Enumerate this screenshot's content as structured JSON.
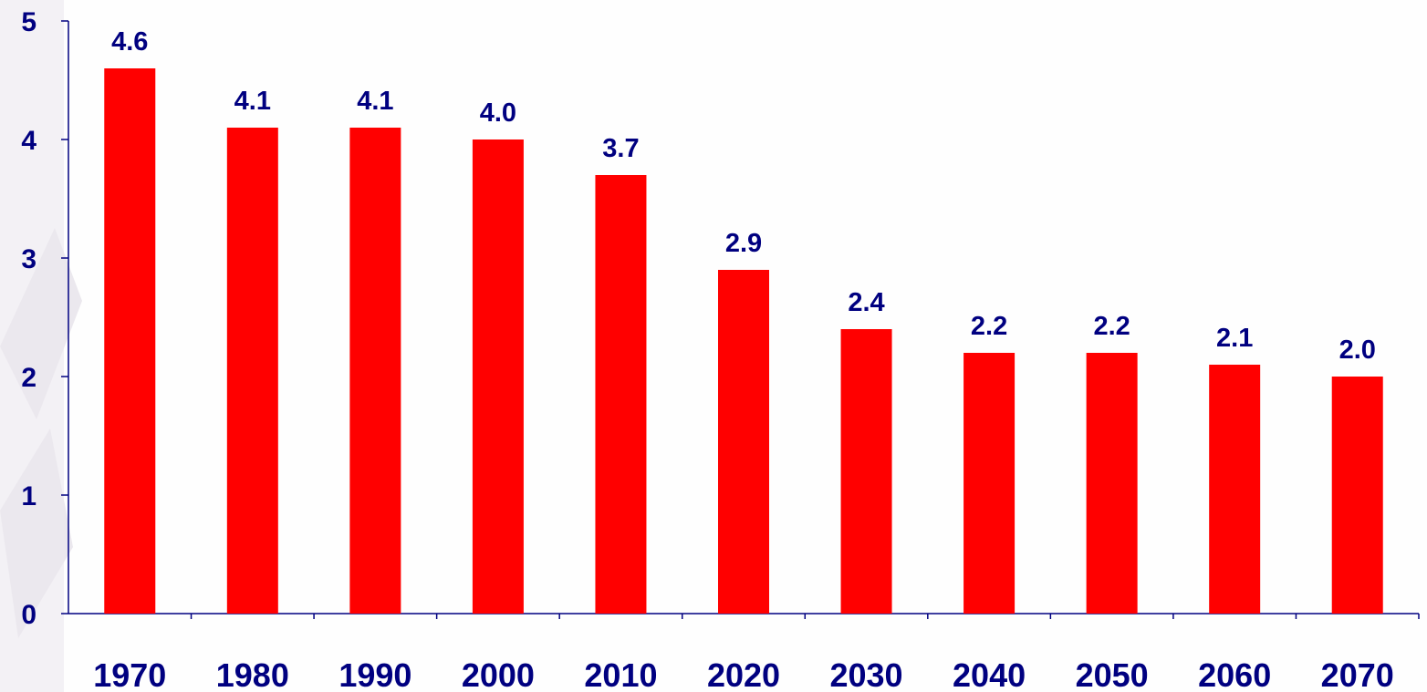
{
  "chart_data": {
    "type": "bar",
    "categories": [
      "1970",
      "1980",
      "1990",
      "2000",
      "2010",
      "2020",
      "2030",
      "2040",
      "2050",
      "2060",
      "2070"
    ],
    "values": [
      4.6,
      4.1,
      4.1,
      4.0,
      3.7,
      2.9,
      2.4,
      2.2,
      2.2,
      2.1,
      2.0
    ],
    "data_labels": [
      "4.6",
      "4.1",
      "4.1",
      "4.0",
      "3.7",
      "2.9",
      "2.4",
      "2.2",
      "2.2",
      "2.1",
      "2.0"
    ],
    "title": "",
    "xlabel": "",
    "ylabel": "",
    "ylim": [
      0,
      5
    ],
    "yticks": [
      "0",
      "1",
      "2",
      "3",
      "4",
      "5"
    ],
    "grid": false,
    "legend": "none",
    "colors": {
      "bar": "#ff0000",
      "text": "#000080",
      "axis": "#000080",
      "background": "#fefefe"
    }
  }
}
